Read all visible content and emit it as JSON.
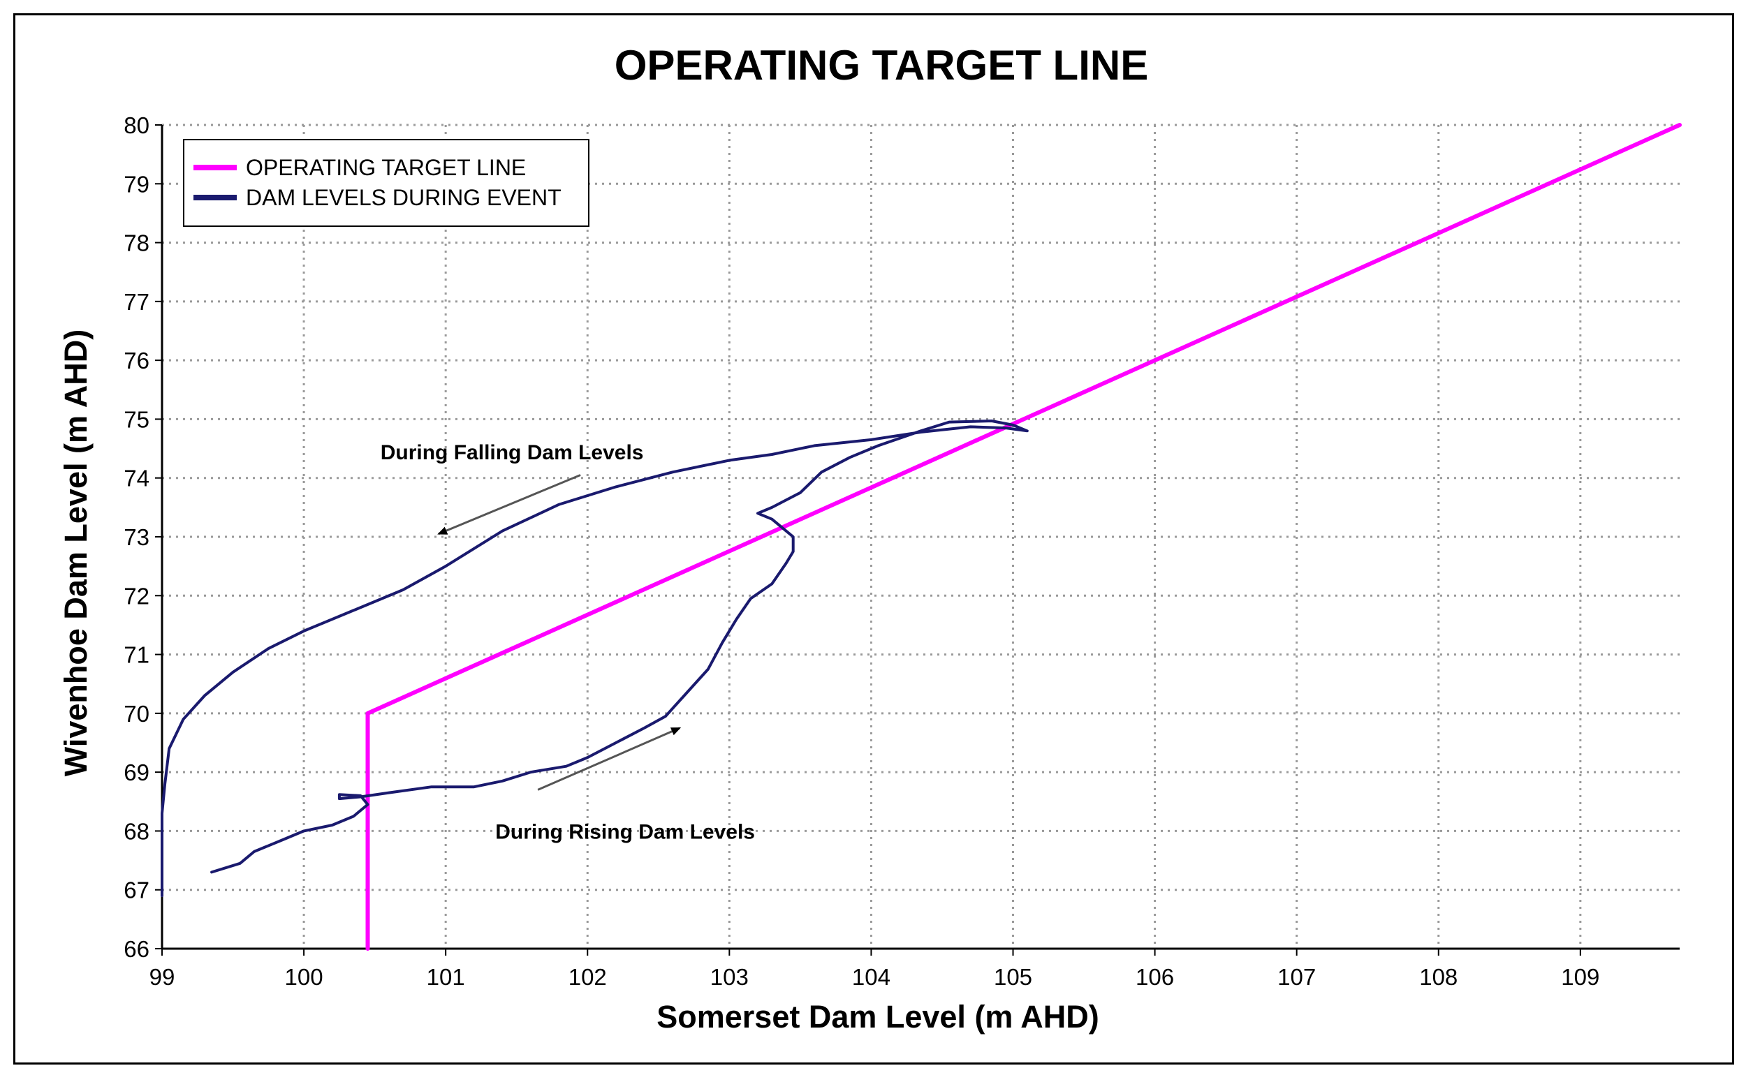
{
  "chart_data": {
    "type": "line",
    "title": "OPERATING TARGET LINE",
    "xlabel": "Somerset Dam Level (m AHD)",
    "ylabel": "Wivenhoe Dam Level (m AHD)",
    "xlim": [
      99,
      109.7
    ],
    "ylim": [
      66,
      80
    ],
    "xticks": [
      99,
      100,
      101,
      102,
      103,
      104,
      105,
      106,
      107,
      108,
      109
    ],
    "yticks": [
      66,
      67,
      68,
      69,
      70,
      71,
      72,
      73,
      74,
      75,
      76,
      77,
      78,
      79,
      80
    ],
    "grid": true,
    "grid_style": "dotted",
    "legend_position": "top-left",
    "series": [
      {
        "name": "OPERATING TARGET LINE",
        "color": "#ff00ff",
        "points": [
          [
            100.45,
            66
          ],
          [
            100.45,
            70
          ],
          [
            109.7,
            80
          ]
        ]
      },
      {
        "name": "DAM LEVELS DURING EVENT",
        "color": "#1a1a6e",
        "points": [
          [
            99.35,
            67.3
          ],
          [
            99.55,
            67.45
          ],
          [
            99.65,
            67.65
          ],
          [
            99.85,
            67.85
          ],
          [
            100.0,
            68.0
          ],
          [
            100.2,
            68.1
          ],
          [
            100.35,
            68.25
          ],
          [
            100.45,
            68.45
          ],
          [
            100.4,
            68.6
          ],
          [
            100.25,
            68.62
          ],
          [
            100.25,
            68.55
          ],
          [
            100.4,
            68.58
          ],
          [
            100.6,
            68.65
          ],
          [
            100.9,
            68.75
          ],
          [
            101.2,
            68.75
          ],
          [
            101.4,
            68.85
          ],
          [
            101.6,
            69.0
          ],
          [
            101.85,
            69.1
          ],
          [
            102.0,
            69.25
          ],
          [
            102.2,
            69.5
          ],
          [
            102.4,
            69.75
          ],
          [
            102.55,
            69.95
          ],
          [
            102.7,
            70.35
          ],
          [
            102.85,
            70.75
          ],
          [
            102.95,
            71.2
          ],
          [
            103.05,
            71.6
          ],
          [
            103.15,
            71.95
          ],
          [
            103.3,
            72.2
          ],
          [
            103.4,
            72.55
          ],
          [
            103.45,
            72.75
          ],
          [
            103.45,
            73.0
          ],
          [
            103.3,
            73.3
          ],
          [
            103.2,
            73.4
          ],
          [
            103.3,
            73.5
          ],
          [
            103.5,
            73.75
          ],
          [
            103.65,
            74.1
          ],
          [
            103.85,
            74.35
          ],
          [
            104.05,
            74.55
          ],
          [
            104.35,
            74.8
          ],
          [
            104.55,
            74.95
          ],
          [
            104.85,
            74.97
          ],
          [
            105.0,
            74.9
          ],
          [
            105.1,
            74.8
          ],
          [
            104.95,
            74.85
          ],
          [
            104.7,
            74.87
          ],
          [
            104.35,
            74.78
          ],
          [
            104.0,
            74.65
          ],
          [
            103.6,
            74.55
          ],
          [
            103.3,
            74.4
          ],
          [
            103.0,
            74.3
          ],
          [
            102.6,
            74.1
          ],
          [
            102.2,
            73.85
          ],
          [
            101.8,
            73.55
          ],
          [
            101.4,
            73.1
          ],
          [
            101.0,
            72.5
          ],
          [
            100.7,
            72.1
          ],
          [
            100.35,
            71.75
          ],
          [
            100.0,
            71.4
          ],
          [
            99.75,
            71.1
          ],
          [
            99.5,
            70.7
          ],
          [
            99.3,
            70.3
          ],
          [
            99.15,
            69.9
          ],
          [
            99.05,
            69.4
          ],
          [
            99.02,
            68.8
          ],
          [
            99.0,
            68.3
          ],
          [
            99.0,
            67.6
          ],
          [
            99.0,
            66.9
          ]
        ]
      }
    ],
    "annotations": [
      {
        "text": "During Falling Dam Levels",
        "arrow_from": [
          101.95,
          74.05
        ],
        "arrow_to": [
          100.95,
          73.05
        ]
      },
      {
        "text": "During Rising Dam Levels",
        "arrow_from": [
          101.65,
          68.7
        ],
        "arrow_to": [
          102.65,
          69.75
        ]
      }
    ]
  }
}
